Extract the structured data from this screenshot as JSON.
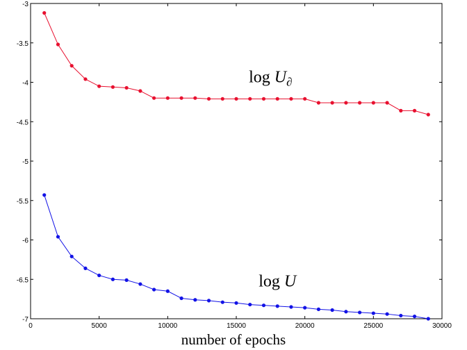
{
  "chart_data": {
    "type": "line",
    "title": "",
    "xlabel": "number of epochs",
    "ylabel": "",
    "xlim": [
      0,
      30000
    ],
    "ylim": [
      -7,
      -3
    ],
    "grid": false,
    "x_ticks": [
      "0",
      "5000",
      "10000",
      "15000",
      "20000",
      "25000",
      "30000"
    ],
    "y_ticks": [
      "-3",
      "-3.5",
      "-4",
      "-4.5",
      "-5",
      "-5.5",
      "-6",
      "-6.5",
      "-7"
    ],
    "x": [
      1000,
      2000,
      3000,
      4000,
      5000,
      6000,
      7000,
      8000,
      9000,
      10000,
      11000,
      12000,
      13000,
      14000,
      15000,
      16000,
      17000,
      18000,
      19000,
      20000,
      21000,
      22000,
      23000,
      24000,
      25000,
      26000,
      27000,
      28000,
      29000
    ],
    "series": [
      {
        "color": "#e8102f",
        "values": [
          -3.12,
          -3.52,
          -3.79,
          -3.96,
          -4.05,
          -4.06,
          -4.07,
          -4.11,
          -4.2,
          -4.2,
          -4.2,
          -4.2,
          -4.21,
          -4.21,
          -4.21,
          -4.21,
          -4.21,
          -4.21,
          -4.21,
          -4.21,
          -4.26,
          -4.26,
          -4.26,
          -4.26,
          -4.26,
          -4.26,
          -4.36,
          -4.36,
          -4.41
        ]
      },
      {
        "color": "#1212e6",
        "values": [
          -5.43,
          -5.96,
          -6.21,
          -6.36,
          -6.45,
          -6.5,
          -6.51,
          -6.56,
          -6.63,
          -6.65,
          -6.74,
          -6.76,
          -6.77,
          -6.79,
          -6.8,
          -6.82,
          -6.83,
          -6.84,
          -6.85,
          -6.86,
          -6.88,
          -6.89,
          -6.91,
          -6.92,
          -6.93,
          -6.94,
          -6.96,
          -6.97,
          -7.0
        ]
      }
    ],
    "annotations": [
      {
        "prefix": "log ",
        "var": "U",
        "sub": "∂",
        "at": [
          17500,
          -4.0
        ]
      },
      {
        "prefix": "log ",
        "var": "U",
        "sub": "",
        "at": [
          18000,
          -6.59
        ]
      }
    ]
  }
}
